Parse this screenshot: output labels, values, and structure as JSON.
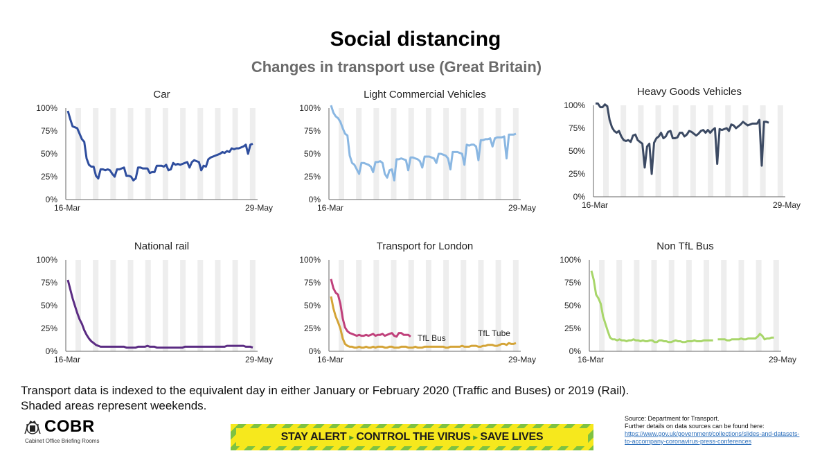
{
  "header": {
    "title": "Social distancing",
    "subtitle": "Changes in transport use (Great Britain)"
  },
  "footnote": {
    "line1": "Transport data is indexed to the equivalent day in either January or February 2020 (Traffic and Buses) or 2019 (Rail).",
    "line2": "Shaded areas represent weekends."
  },
  "logo": {
    "name": "COBR",
    "subtitle": "Cabinet Office Briefing Rooms",
    "crest_icon": "royal-crest-icon"
  },
  "banner": {
    "part1": "STAY ALERT",
    "part2": "CONTROL THE VIRUS",
    "part3": "SAVE LIVES",
    "arrow": "▸"
  },
  "source": {
    "line1": "Source: Department for Transport.",
    "line2": "Further details on data sources can be found here:",
    "link1": "https://www.gov.uk/government/collections/slides-and-datasets-",
    "link2": "to-accompany-coronavirus-press-conferences"
  },
  "colors": {
    "car": "#2f4e9e",
    "lcv": "#8ab7e2",
    "hgv": "#3c4a63",
    "rail": "#5b2c83",
    "tfl_bus": "#c0407b",
    "tfl_tube": "#d4a437",
    "non_tfl_bus": "#a8d66a",
    "weekend_shade": "#eeeeee",
    "axis": "#666666"
  },
  "chart_data": [
    {
      "type": "line",
      "title": "Car",
      "x_start": "16-Mar",
      "x_end": "29-May",
      "yticks": [
        "0%",
        "25%",
        "50%",
        "75%",
        "100%"
      ],
      "ylim": [
        0,
        100
      ],
      "series": [
        {
          "color_key": "car",
          "values": [
            97,
            88,
            80,
            79,
            78,
            72,
            66,
            63,
            45,
            38,
            36,
            36,
            26,
            23,
            33,
            33,
            32,
            33,
            32,
            28,
            25,
            33,
            33,
            34,
            35,
            26,
            26,
            25,
            21,
            23,
            35,
            35,
            34,
            34,
            34,
            29,
            30,
            30,
            37,
            37,
            37,
            36,
            38,
            32,
            33,
            40,
            38,
            39,
            38,
            39,
            40,
            41,
            35,
            41,
            43,
            42,
            41,
            32,
            37,
            36,
            44,
            46,
            47,
            48,
            49,
            50,
            52,
            51,
            53,
            52,
            56,
            55,
            56,
            56,
            57,
            58,
            60,
            50,
            60,
            61
          ]
        }
      ]
    },
    {
      "type": "line",
      "title": "Light Commercial Vehicles",
      "x_start": "16-Mar",
      "x_end": "29-May",
      "yticks": [
        "0%",
        "25%",
        "50%",
        "75%",
        "100%"
      ],
      "ylim": [
        0,
        100
      ],
      "series": [
        {
          "color_key": "lcv",
          "values": [
            103,
            95,
            91,
            89,
            85,
            78,
            72,
            70,
            48,
            40,
            38,
            33,
            28,
            40,
            40,
            39,
            38,
            36,
            30,
            41,
            41,
            42,
            40,
            28,
            24,
            32,
            33,
            21,
            44,
            44,
            45,
            44,
            43,
            32,
            46,
            46,
            45,
            44,
            42,
            35,
            47,
            47,
            47,
            46,
            45,
            40,
            50,
            50,
            49,
            48,
            45,
            33,
            52,
            52,
            52,
            51,
            50,
            38,
            60,
            59,
            60,
            60,
            58,
            43,
            65,
            65,
            66,
            66,
            67,
            58,
            67,
            68,
            68,
            68,
            69,
            45,
            71,
            71,
            71,
            72
          ]
        }
      ]
    },
    {
      "type": "line",
      "title": "Heavy Goods Vehicles",
      "x_start": "16-Mar",
      "x_end": "29-May",
      "yticks": [
        "0%",
        "25%",
        "50%",
        "75%",
        "100%"
      ],
      "ylim": [
        0,
        100
      ],
      "series": [
        {
          "color_key": "hgv",
          "values": [
            102,
            102,
            98,
            98,
            101,
            99,
            84,
            76,
            72,
            70,
            72,
            66,
            62,
            61,
            62,
            60,
            67,
            68,
            62,
            60,
            58,
            32,
            55,
            58,
            25,
            59,
            64,
            66,
            70,
            64,
            66,
            71,
            72,
            64,
            64,
            65,
            70,
            70,
            66,
            68,
            72,
            71,
            69,
            67,
            69,
            72,
            73,
            70,
            73,
            70,
            73,
            75,
            36,
            74,
            73,
            74,
            75,
            72,
            79,
            78,
            75,
            77,
            79,
            82,
            80,
            78,
            79,
            80,
            80,
            80,
            84,
            34,
            82,
            82,
            81
          ]
        }
      ]
    },
    {
      "type": "line",
      "title": "National rail",
      "x_start": "16-Mar",
      "x_end": "29-May",
      "yticks": [
        "0%",
        "25%",
        "50%",
        "75%",
        "100%"
      ],
      "ylim": [
        0,
        100
      ],
      "series": [
        {
          "color_key": "rail",
          "values": [
            78,
            68,
            58,
            50,
            42,
            35,
            30,
            23,
            18,
            14,
            11,
            9,
            7,
            6,
            5,
            5,
            5,
            5,
            5,
            5,
            5,
            5,
            5,
            5,
            5,
            4,
            4,
            4,
            4,
            4,
            5,
            5,
            5,
            5,
            6,
            5,
            5,
            5,
            4,
            4,
            4,
            4,
            4,
            4,
            4,
            4,
            4,
            4,
            4,
            4,
            5,
            5,
            5,
            5,
            5,
            5,
            5,
            5,
            5,
            5,
            5,
            5,
            5,
            5,
            5,
            5,
            5,
            5,
            6,
            6,
            6,
            6,
            6,
            6,
            6,
            6,
            5,
            5,
            5,
            4
          ]
        }
      ]
    },
    {
      "type": "line",
      "title": "Transport for London",
      "x_start": "16-Mar",
      "x_end": "29-May",
      "yticks": [
        "0%",
        "25%",
        "50%",
        "75%",
        "100%"
      ],
      "ylim": [
        0,
        100
      ],
      "series": [
        {
          "name": "TfL Bus",
          "color_key": "tfl_bus",
          "values": [
            79,
            69,
            64,
            62,
            52,
            36,
            26,
            22,
            20,
            19,
            18,
            17,
            18,
            17,
            17,
            18,
            17,
            18,
            19,
            17,
            18,
            18,
            19,
            17,
            18,
            19,
            20,
            17,
            16,
            20,
            20,
            18,
            18,
            18,
            16
          ]
        },
        {
          "name": "TfL Tube",
          "color_key": "tfl_tube",
          "values": [
            60,
            47,
            38,
            32,
            25,
            14,
            8,
            6,
            5,
            5,
            4,
            4,
            5,
            4,
            4,
            5,
            4,
            4,
            5,
            4,
            5,
            5,
            5,
            4,
            4,
            5,
            5,
            4,
            4,
            4,
            5,
            5,
            5,
            4,
            4,
            4,
            5,
            4,
            4,
            4,
            5,
            5,
            5,
            5,
            5,
            5,
            5,
            5,
            5,
            4,
            4,
            5,
            5,
            5,
            5,
            5,
            6,
            5,
            5,
            5,
            6,
            6,
            6,
            5,
            5,
            6,
            6,
            7,
            7,
            7,
            6,
            6,
            7,
            8,
            8,
            7,
            9,
            8,
            8,
            9
          ]
        }
      ]
    },
    {
      "type": "line",
      "title": "Non TfL Bus",
      "x_start": "16-Mar",
      "x_end": "29-May",
      "yticks": [
        "0%",
        "25%",
        "50%",
        "75%",
        "100%"
      ],
      "ylim": [
        0,
        100
      ],
      "series": [
        {
          "color_key": "non_tfl_bus",
          "values": [
            88,
            78,
            62,
            58,
            52,
            38,
            30,
            22,
            15,
            13,
            13,
            12,
            13,
            12,
            12,
            11,
            12,
            12,
            13,
            12,
            12,
            11,
            12,
            11,
            11,
            12,
            12,
            10,
            10,
            12,
            12,
            11,
            11,
            10,
            10,
            11,
            12,
            11,
            11,
            10,
            10,
            11,
            11,
            11,
            12,
            11,
            11,
            11,
            12,
            12,
            12,
            12,
            12,
            null,
            13,
            13,
            13,
            13,
            12,
            12,
            13,
            13,
            13,
            13,
            14,
            13,
            13,
            14,
            14,
            14,
            14,
            16,
            19,
            17,
            13,
            14,
            14,
            15,
            15
          ]
        }
      ]
    }
  ]
}
